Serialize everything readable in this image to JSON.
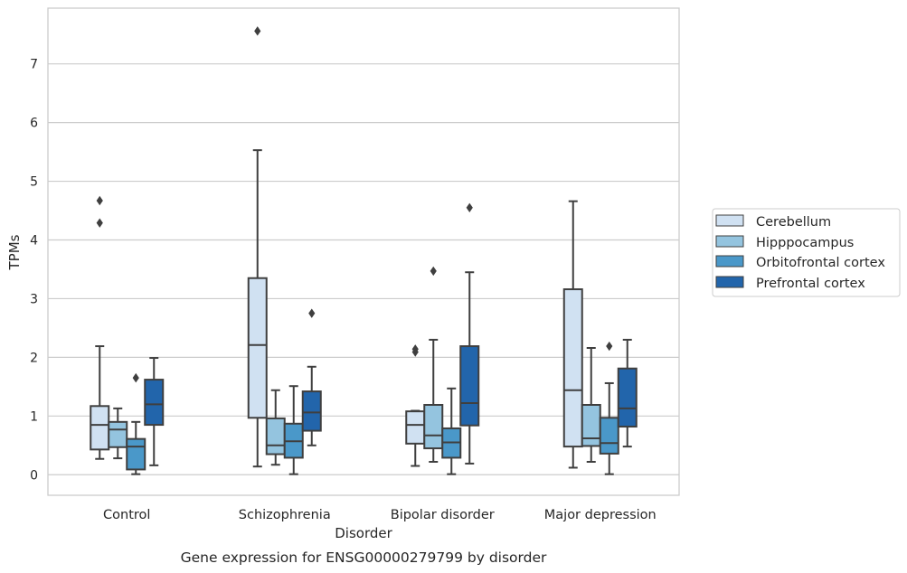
{
  "caption": "Gene expression for ENSG00000279799 by disorder",
  "colors": {
    "Cerebellum": "#d0e1f2",
    "Hipppocampus": "#94c4df",
    "Orbitofrontal cortex": "#4a98c9",
    "Prefrontal cortex": "#2265ab",
    "line": "#3f3f3f",
    "grid": "#cccccc",
    "frame": "#cccccc"
  },
  "chart_data": {
    "type": "box",
    "title": "",
    "xlabel": "Disorder",
    "ylabel": "TPMs",
    "ylim": [
      -0.35,
      7.95
    ],
    "yticks": [
      0,
      1,
      2,
      3,
      4,
      5,
      6,
      7
    ],
    "grid": "horizontal",
    "legend_position": "right",
    "categories": [
      "Control",
      "Schizophrenia",
      "Bipolar disorder",
      "Major depression"
    ],
    "series": [
      {
        "name": "Cerebellum",
        "boxes": [
          {
            "whislo": 0.27,
            "q1": 0.43,
            "med": 0.85,
            "q3": 1.17,
            "whishi": 2.19,
            "fliers": [
              4.29,
              4.67
            ]
          },
          {
            "whislo": 0.14,
            "q1": 0.97,
            "med": 2.21,
            "q3": 3.35,
            "whishi": 5.53,
            "fliers": [
              7.56
            ]
          },
          {
            "whislo": 0.15,
            "q1": 0.53,
            "med": 0.85,
            "q3": 1.08,
            "whishi": 1.09,
            "fliers": [
              2.09,
              2.14
            ]
          },
          {
            "whislo": 0.12,
            "q1": 0.48,
            "med": 1.44,
            "q3": 3.16,
            "whishi": 4.66,
            "fliers": []
          }
        ]
      },
      {
        "name": "Hipppocampus",
        "boxes": [
          {
            "whislo": 0.28,
            "q1": 0.47,
            "med": 0.77,
            "q3": 0.9,
            "whishi": 1.13,
            "fliers": []
          },
          {
            "whislo": 0.17,
            "q1": 0.35,
            "med": 0.5,
            "q3": 0.96,
            "whishi": 1.44,
            "fliers": []
          },
          {
            "whislo": 0.22,
            "q1": 0.45,
            "med": 0.67,
            "q3": 1.19,
            "whishi": 2.3,
            "fliers": [
              3.47
            ]
          },
          {
            "whislo": 0.22,
            "q1": 0.49,
            "med": 0.62,
            "q3": 1.19,
            "whishi": 2.16,
            "fliers": []
          }
        ]
      },
      {
        "name": "Orbitofrontal cortex",
        "boxes": [
          {
            "whislo": 0.01,
            "q1": 0.09,
            "med": 0.48,
            "q3": 0.61,
            "whishi": 0.9,
            "fliers": [
              1.65
            ]
          },
          {
            "whislo": 0.01,
            "q1": 0.29,
            "med": 0.57,
            "q3": 0.87,
            "whishi": 1.51,
            "fliers": []
          },
          {
            "whislo": 0.01,
            "q1": 0.29,
            "med": 0.55,
            "q3": 0.79,
            "whishi": 1.47,
            "fliers": []
          },
          {
            "whislo": 0.01,
            "q1": 0.36,
            "med": 0.54,
            "q3": 0.97,
            "whishi": 1.56,
            "fliers": [
              2.19
            ]
          }
        ]
      },
      {
        "name": "Prefrontal cortex",
        "boxes": [
          {
            "whislo": 0.16,
            "q1": 0.85,
            "med": 1.2,
            "q3": 1.62,
            "whishi": 1.99,
            "fliers": []
          },
          {
            "whislo": 0.5,
            "q1": 0.75,
            "med": 1.06,
            "q3": 1.42,
            "whishi": 1.84,
            "fliers": [
              2.75
            ]
          },
          {
            "whislo": 0.19,
            "q1": 0.84,
            "med": 1.22,
            "q3": 2.19,
            "whishi": 3.45,
            "fliers": [
              4.55
            ]
          },
          {
            "whislo": 0.48,
            "q1": 0.82,
            "med": 1.13,
            "q3": 1.81,
            "whishi": 2.3,
            "fliers": []
          }
        ]
      }
    ]
  }
}
